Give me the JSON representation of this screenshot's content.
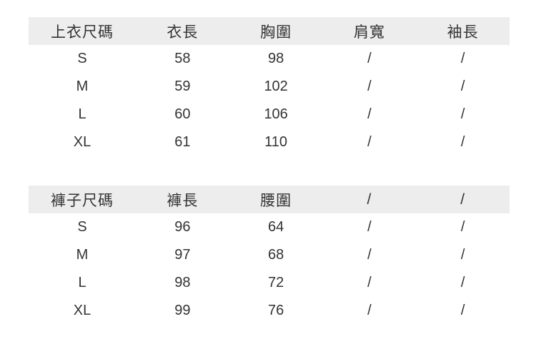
{
  "colors": {
    "page_bg": "#ffffff",
    "header_bg": "#ededed",
    "text": "#333333"
  },
  "chart_data": [
    {
      "type": "table",
      "title": "上衣尺碼",
      "columns": [
        "上衣尺碼",
        "衣長",
        "胸圍",
        "肩寬",
        "袖長"
      ],
      "rows": [
        [
          "S",
          "58",
          "98",
          "/",
          "/"
        ],
        [
          "M",
          "59",
          "102",
          "/",
          "/"
        ],
        [
          "L",
          "60",
          "106",
          "/",
          "/"
        ],
        [
          "XL",
          "61",
          "110",
          "/",
          "/"
        ]
      ]
    },
    {
      "type": "table",
      "title": "褲子尺碼",
      "columns": [
        "褲子尺碼",
        "褲長",
        "腰圍",
        "/",
        "/"
      ],
      "rows": [
        [
          "S",
          "96",
          "64",
          "/",
          "/"
        ],
        [
          "M",
          "97",
          "68",
          "/",
          "/"
        ],
        [
          "L",
          "98",
          "72",
          "/",
          "/"
        ],
        [
          "XL",
          "99",
          "76",
          "/",
          "/"
        ]
      ]
    }
  ]
}
